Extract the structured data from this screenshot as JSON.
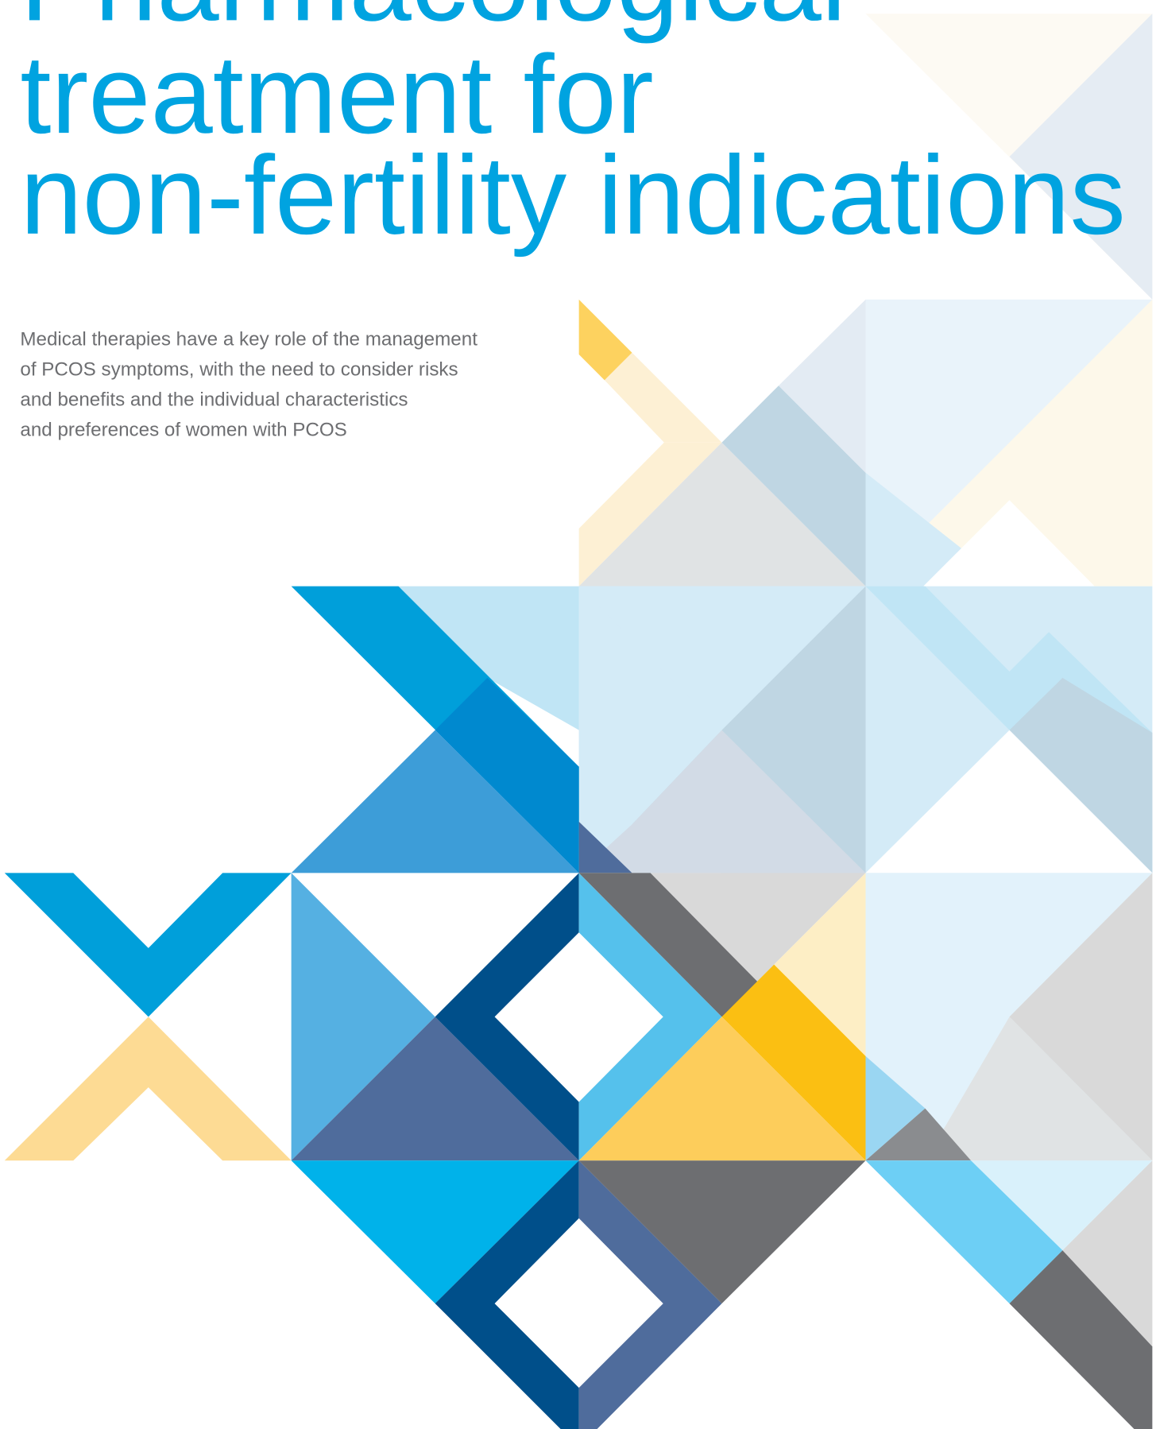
{
  "title": {
    "lines": [
      "Pharmacological",
      "treatment for",
      "non-fertility indications"
    ]
  },
  "body": {
    "lines": [
      "Medical therapies have a key role of the management",
      "of PCOS symptoms, with the need to consider risks",
      "and benefits and the individual characteristics",
      "and preferences of women with PCOS"
    ]
  }
}
